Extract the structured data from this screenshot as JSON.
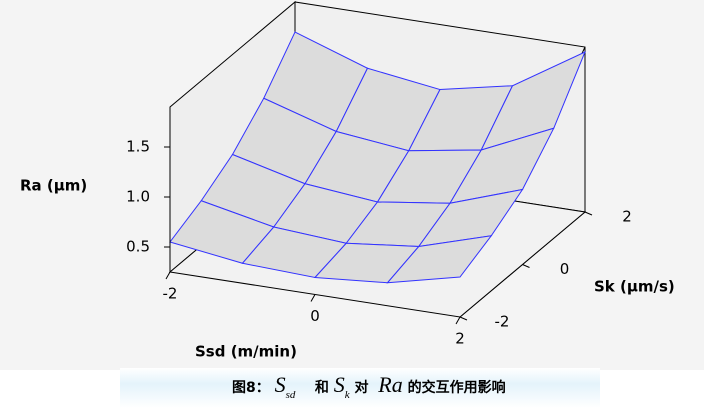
{
  "chart_data": {
    "type": "surface",
    "zlabel": "Ra (µm)",
    "xlabel": "Ssd (m/min)",
    "ylabel": "Sk (µm/s)",
    "x": [
      -2,
      -1,
      0,
      1,
      2
    ],
    "y": [
      -2,
      -1,
      0,
      1,
      2
    ],
    "z": [
      [
        0.55,
        0.45,
        0.42,
        0.48,
        0.65
      ],
      [
        0.7,
        0.55,
        0.5,
        0.58,
        0.8
      ],
      [
        0.9,
        0.72,
        0.65,
        0.75,
        1.0
      ],
      [
        1.2,
        0.98,
        0.9,
        1.02,
        1.35
      ],
      [
        1.6,
        1.35,
        1.25,
        1.4,
        1.85
      ]
    ],
    "xlim": [
      -2,
      2
    ],
    "ylim": [
      -2,
      2
    ],
    "zlim": [
      0.25,
      1.9
    ],
    "xticks": [
      -2,
      0,
      2
    ],
    "yticks": [
      -2,
      0,
      2
    ],
    "zticks": [
      0.5,
      {
        "value": 1,
        "label": "1.0"
      },
      1.5
    ],
    "color": "#3333ff",
    "surface_fill": "#dcdcdc",
    "caption": [
      "图8：",
      "S",
      "sd",
      "和",
      "S",
      "k",
      "对",
      "Ra",
      "的交互作用影响"
    ]
  }
}
